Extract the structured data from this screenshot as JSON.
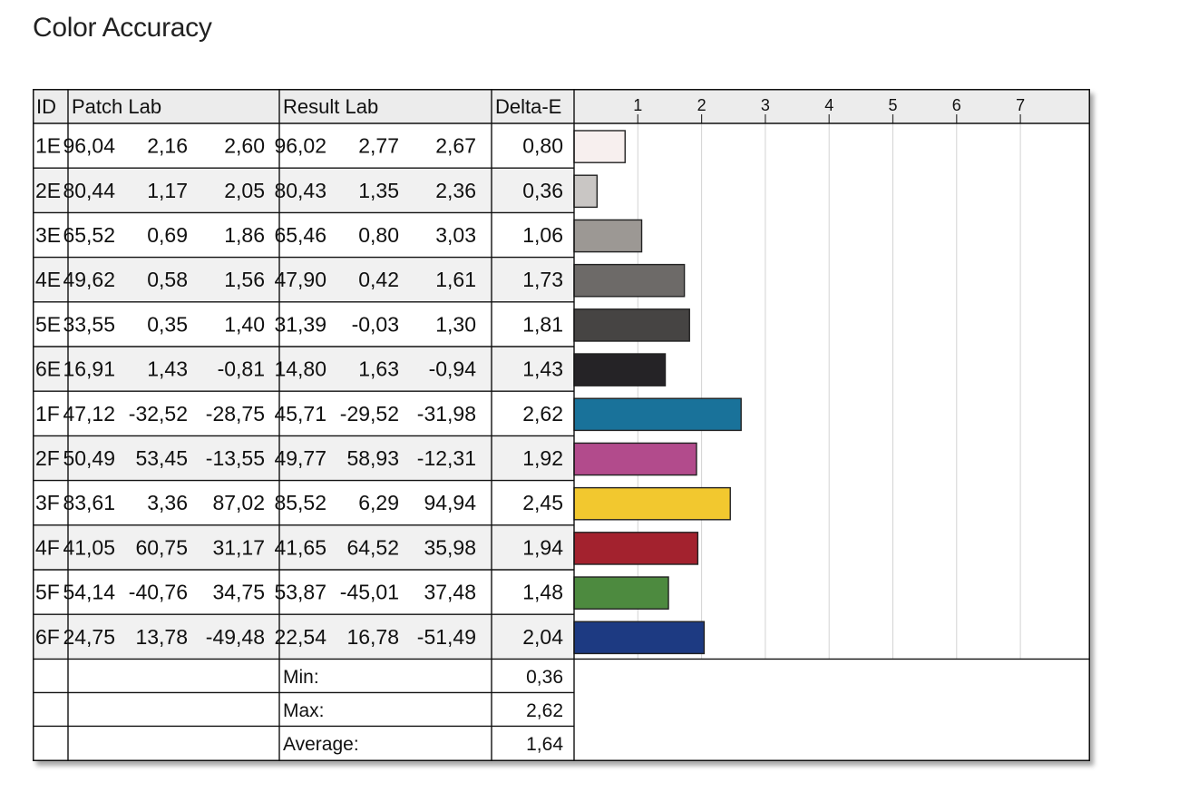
{
  "title": "Color Accuracy",
  "table": {
    "headers": {
      "id": "ID",
      "patch": "Patch Lab",
      "result": "Result Lab",
      "delta": "Delta-E"
    },
    "rows": [
      {
        "id": "1E",
        "patch": [
          "96,04",
          "2,16",
          "2,60"
        ],
        "result": [
          "96,02",
          "2,77",
          "2,67"
        ],
        "delta": "0,80",
        "color": "#f7efee"
      },
      {
        "id": "2E",
        "patch": [
          "80,44",
          "1,17",
          "2,05"
        ],
        "result": [
          "80,43",
          "1,35",
          "2,36"
        ],
        "delta": "0,36",
        "color": "#c9c6c4"
      },
      {
        "id": "3E",
        "patch": [
          "65,52",
          "0,69",
          "1,86"
        ],
        "result": [
          "65,46",
          "0,80",
          "3,03"
        ],
        "delta": "1,06",
        "color": "#9c9894"
      },
      {
        "id": "4E",
        "patch": [
          "49,62",
          "0,58",
          "1,56"
        ],
        "result": [
          "47,90",
          "0,42",
          "1,61"
        ],
        "delta": "1,73",
        "color": "#6d6a68"
      },
      {
        "id": "5E",
        "patch": [
          "33,55",
          "0,35",
          "1,40"
        ],
        "result": [
          "31,39",
          "-0,03",
          "1,30"
        ],
        "delta": "1,81",
        "color": "#464443"
      },
      {
        "id": "6E",
        "patch": [
          "16,91",
          "1,43",
          "-0,81"
        ],
        "result": [
          "14,80",
          "1,63",
          "-0,94"
        ],
        "delta": "1,43",
        "color": "#252326"
      },
      {
        "id": "1F",
        "patch": [
          "47,12",
          "-32,52",
          "-28,75"
        ],
        "result": [
          "45,71",
          "-29,52",
          "-31,98"
        ],
        "delta": "2,62",
        "color": "#19729a"
      },
      {
        "id": "2F",
        "patch": [
          "50,49",
          "53,45",
          "-13,55"
        ],
        "result": [
          "49,77",
          "58,93",
          "-12,31"
        ],
        "delta": "1,92",
        "color": "#b24b8c"
      },
      {
        "id": "3F",
        "patch": [
          "83,61",
          "3,36",
          "87,02"
        ],
        "result": [
          "85,52",
          "6,29",
          "94,94"
        ],
        "delta": "2,45",
        "color": "#f2c82f"
      },
      {
        "id": "4F",
        "patch": [
          "41,05",
          "60,75",
          "31,17"
        ],
        "result": [
          "41,65",
          "64,52",
          "35,98"
        ],
        "delta": "1,94",
        "color": "#a3222e"
      },
      {
        "id": "5F",
        "patch": [
          "54,14",
          "-40,76",
          "34,75"
        ],
        "result": [
          "53,87",
          "-45,01",
          "37,48"
        ],
        "delta": "1,48",
        "color": "#4d8a3f"
      },
      {
        "id": "6F",
        "patch": [
          "24,75",
          "13,78",
          "-49,48"
        ],
        "result": [
          "22,54",
          "16,78",
          "-51,49"
        ],
        "delta": "2,04",
        "color": "#1d3a82"
      }
    ],
    "summary": [
      {
        "label": "Min:",
        "value": "0,36"
      },
      {
        "label": "Max:",
        "value": "2,62"
      },
      {
        "label": "Average:",
        "value": "1,64"
      }
    ]
  },
  "chart_data": {
    "type": "bar",
    "orientation": "horizontal",
    "categories": [
      "1E",
      "2E",
      "3E",
      "4E",
      "5E",
      "6E",
      "1F",
      "2F",
      "3F",
      "4F",
      "5F",
      "6F"
    ],
    "values": [
      0.8,
      0.36,
      1.06,
      1.73,
      1.81,
      1.43,
      2.62,
      1.92,
      2.45,
      1.94,
      1.48,
      2.04
    ],
    "bar_colors": [
      "#f7efee",
      "#c9c6c4",
      "#9c9894",
      "#6d6a68",
      "#464443",
      "#252326",
      "#19729a",
      "#b24b8c",
      "#f2c82f",
      "#a3222e",
      "#4d8a3f",
      "#1d3a82"
    ],
    "xticks": [
      1,
      2,
      3,
      4,
      5,
      6,
      7
    ],
    "xlim": [
      0,
      8
    ],
    "grid": true
  }
}
